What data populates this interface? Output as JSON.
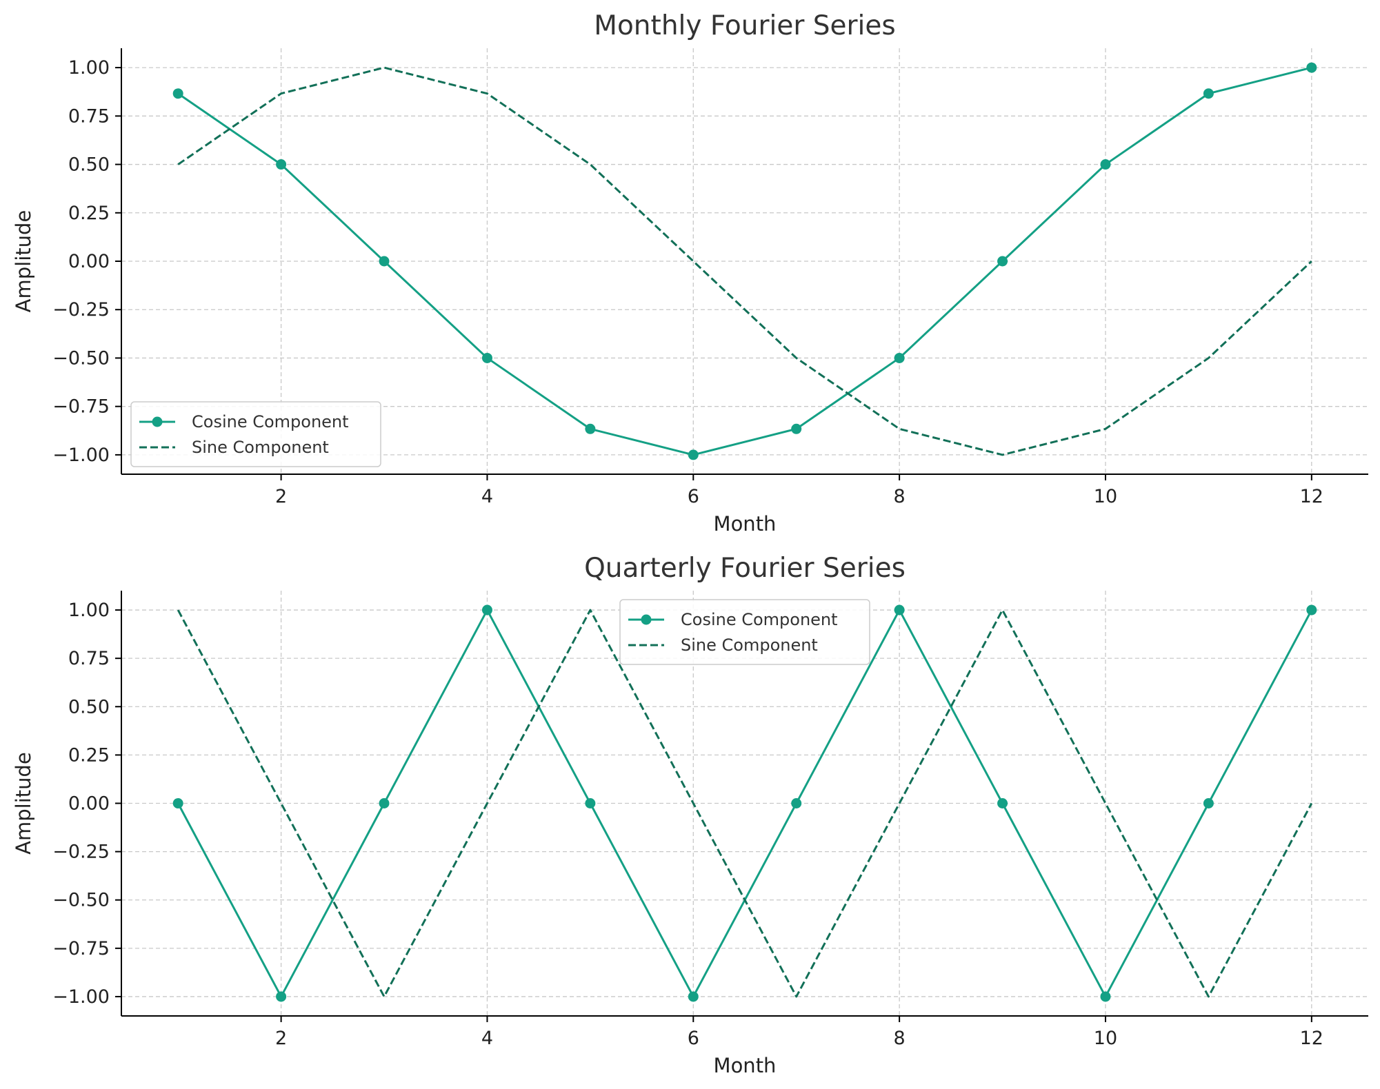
{
  "chart_data": [
    {
      "type": "line",
      "title": "Monthly Fourier Series",
      "xlabel": "Month",
      "ylabel": "Amplitude",
      "x": [
        1,
        2,
        3,
        4,
        5,
        6,
        7,
        8,
        9,
        10,
        11,
        12
      ],
      "xlim": [
        0.45,
        12.55
      ],
      "ylim": [
        -1.1,
        1.1
      ],
      "xticks": [
        2,
        4,
        6,
        8,
        10,
        12
      ],
      "xtick_labels": [
        "2",
        "4",
        "6",
        "8",
        "10",
        "12"
      ],
      "yticks": [
        1.0,
        0.75,
        0.5,
        0.25,
        0.0,
        -0.25,
        -0.5,
        -0.75,
        -1.0
      ],
      "ytick_labels": [
        "1.00",
        "0.75",
        "0.50",
        "0.25",
        "0.00",
        "−0.25",
        "−0.50",
        "−0.75",
        "−1.00"
      ],
      "grid": true,
      "legend_position": "lower-left",
      "series": [
        {
          "name": "Cosine Component",
          "style": "solid-marker",
          "color": "#14a085",
          "values": [
            0.866,
            0.5,
            0.0,
            -0.5,
            -0.866,
            -1.0,
            -0.866,
            -0.5,
            0.0,
            0.5,
            0.866,
            1.0
          ]
        },
        {
          "name": "Sine Component",
          "style": "dashed",
          "color": "#127058",
          "values": [
            0.5,
            0.866,
            1.0,
            0.866,
            0.5,
            0.0,
            -0.5,
            -0.866,
            -1.0,
            -0.866,
            -0.5,
            0.0
          ]
        }
      ]
    },
    {
      "type": "line",
      "title": "Quarterly Fourier Series",
      "xlabel": "Month",
      "ylabel": "Amplitude",
      "x": [
        1,
        2,
        3,
        4,
        5,
        6,
        7,
        8,
        9,
        10,
        11,
        12
      ],
      "xlim": [
        0.45,
        12.55
      ],
      "ylim": [
        -1.1,
        1.1
      ],
      "xticks": [
        2,
        4,
        6,
        8,
        10,
        12
      ],
      "xtick_labels": [
        "2",
        "4",
        "6",
        "8",
        "10",
        "12"
      ],
      "yticks": [
        1.0,
        0.75,
        0.5,
        0.25,
        0.0,
        -0.25,
        -0.5,
        -0.75,
        -1.0
      ],
      "ytick_labels": [
        "1.00",
        "0.75",
        "0.50",
        "0.25",
        "0.00",
        "−0.25",
        "−0.50",
        "−0.75",
        "−1.00"
      ],
      "grid": true,
      "legend_position": "upper-center",
      "series": [
        {
          "name": "Cosine Component",
          "style": "solid-marker",
          "color": "#14a085",
          "values": [
            0,
            -1,
            0,
            1,
            0,
            -1,
            0,
            1,
            0,
            -1,
            0,
            1
          ]
        },
        {
          "name": "Sine Component",
          "style": "dashed",
          "color": "#127058",
          "values": [
            1,
            0,
            -1,
            0,
            1,
            0,
            -1,
            0,
            1,
            0,
            -1,
            0
          ]
        }
      ]
    }
  ]
}
